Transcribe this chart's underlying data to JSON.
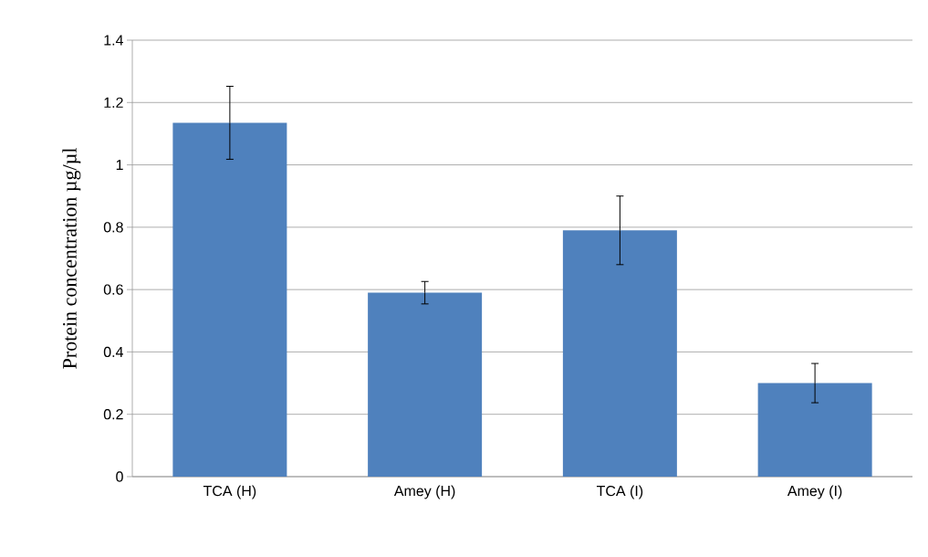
{
  "chart_data": {
    "type": "bar",
    "ylabel": "Protein concentration µg/µl",
    "categories": [
      "TCA (H)",
      "Amey (H)",
      "TCA (I)",
      "Amey (I)"
    ],
    "values": [
      1.135,
      0.59,
      0.79,
      0.3
    ],
    "errors": [
      0.117,
      0.036,
      0.11,
      0.063
    ],
    "color": "#4f81bd",
    "ylim": [
      0,
      1.4
    ],
    "yticks": [
      0,
      0.2,
      0.4,
      0.6,
      0.8,
      1,
      1.2,
      1.4
    ],
    "grid": "y"
  }
}
